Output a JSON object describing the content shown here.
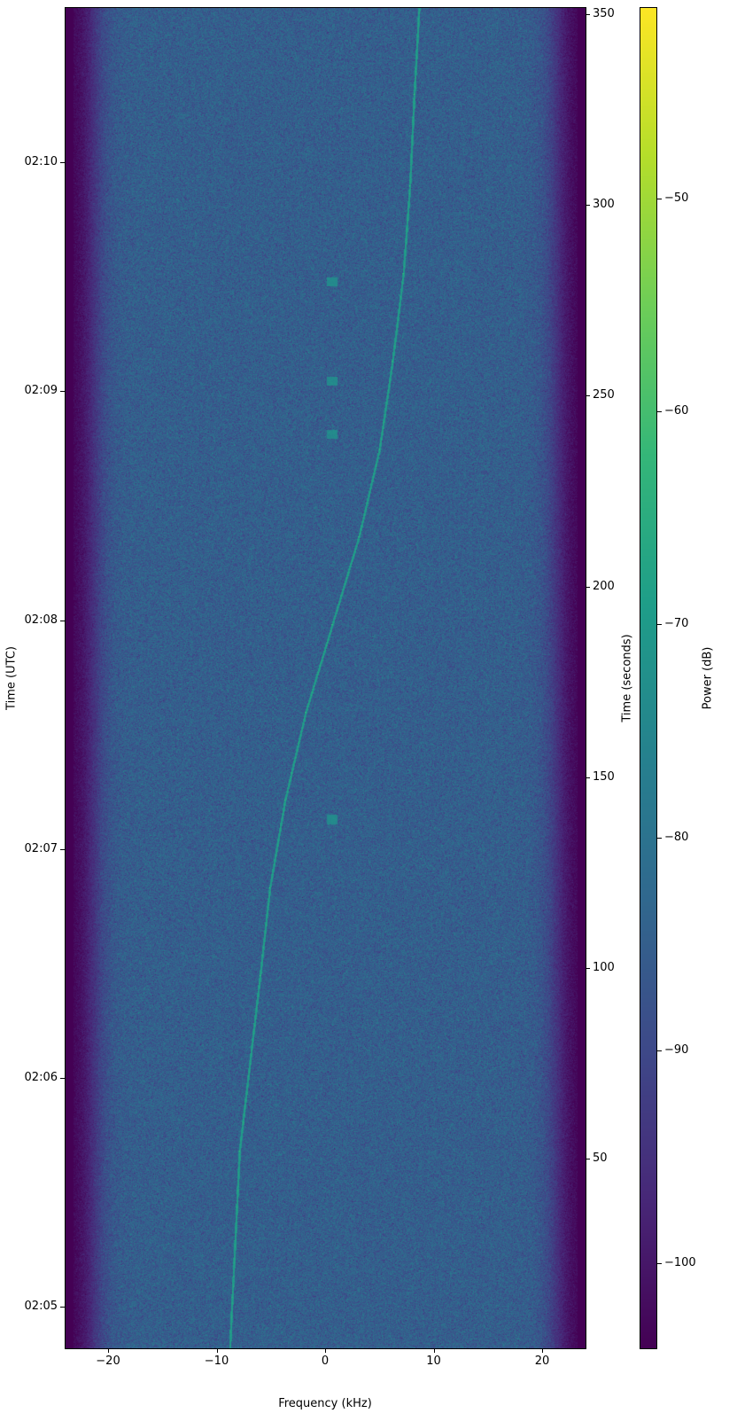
{
  "chart_data": {
    "type": "heatmap",
    "colormap": "viridis",
    "xlabel": "Frequency (kHz)",
    "ylabel_left": "Time (UTC)",
    "ylabel_right": "Time (seconds)",
    "colorbar_label": "Power (dB)",
    "xlim": [
      -24,
      24
    ],
    "ylim_seconds": [
      0.3,
      351.9
    ],
    "clim_db": [
      -104,
      -41
    ],
    "x_ticks": [
      {
        "v": -20,
        "label": "−20"
      },
      {
        "v": -10,
        "label": "−10"
      },
      {
        "v": 0,
        "label": "0"
      },
      {
        "v": 10,
        "label": "10"
      },
      {
        "v": 20,
        "label": "20"
      }
    ],
    "y_ticks_right": [
      {
        "v": 50,
        "label": "50"
      },
      {
        "v": 100,
        "label": "100"
      },
      {
        "v": 150,
        "label": "150"
      },
      {
        "v": 200,
        "label": "200"
      },
      {
        "v": 250,
        "label": "250"
      },
      {
        "v": 300,
        "label": "300"
      },
      {
        "v": 350,
        "label": "350"
      }
    ],
    "y_ticks_left": [
      {
        "v": 11.2,
        "label": "02:05"
      },
      {
        "v": 71.2,
        "label": "02:06"
      },
      {
        "v": 131.2,
        "label": "02:07"
      },
      {
        "v": 191.2,
        "label": "02:08"
      },
      {
        "v": 251.2,
        "label": "02:09"
      },
      {
        "v": 311.2,
        "label": "02:10"
      }
    ],
    "colorbar_ticks": [
      {
        "v": -100,
        "label": "−100"
      },
      {
        "v": -90,
        "label": "−90"
      },
      {
        "v": -80,
        "label": "−80"
      },
      {
        "v": -70,
        "label": "−70"
      },
      {
        "v": -60,
        "label": "−60"
      },
      {
        "v": -50,
        "label": "−50"
      }
    ],
    "noise_floor_db": -85,
    "band_edge_db": -104,
    "signal_db": -68,
    "signal_track": {
      "time_s": [
        0,
        52,
        98,
        121,
        144,
        167,
        190,
        213,
        236,
        259,
        282,
        305,
        329,
        352
      ],
      "freq_khz": [
        -8.8,
        -7.9,
        -6.0,
        -5.1,
        -3.7,
        -1.8,
        0.65,
        3.1,
        5.0,
        6.2,
        7.2,
        7.8,
        8.2,
        8.65
      ]
    },
    "weak_features": [
      {
        "time_s": 139,
        "freq_khz": 0.6
      },
      {
        "time_s": 240,
        "freq_khz": 0.6
      },
      {
        "time_s": 254,
        "freq_khz": 0.6
      },
      {
        "time_s": 280,
        "freq_khz": 0.6
      }
    ]
  }
}
